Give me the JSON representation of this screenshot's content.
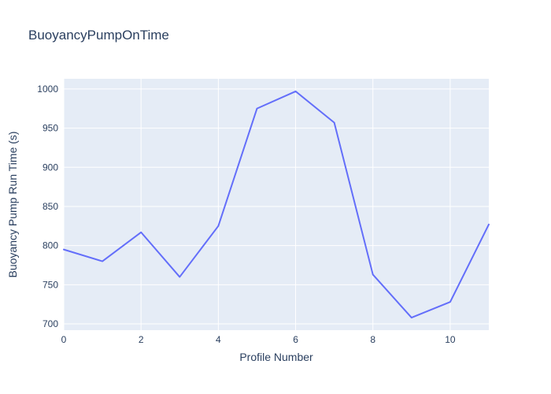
{
  "title": "BuoyancyPumpOnTime",
  "colors": {
    "line": "#636efa",
    "plot_bg": "#e5ecf6",
    "grid": "#ffffff",
    "text": "#2a3f5f",
    "paper": "#ffffff"
  },
  "chart_data": {
    "type": "line",
    "title": "BuoyancyPumpOnTime",
    "xlabel": "Profile Number",
    "ylabel": "Buoyancy Pump Run Time (s)",
    "x": [
      0,
      1,
      2,
      3,
      4,
      5,
      6,
      7,
      8,
      9,
      10,
      11
    ],
    "y": [
      795,
      780,
      817,
      760,
      825,
      975,
      997,
      957,
      763,
      708,
      728,
      827
    ],
    "series_name": "BuoyancyPumpOnTime",
    "x_range": [
      0,
      11
    ],
    "y_range": [
      692,
      1013
    ],
    "x_ticks": [
      0,
      2,
      4,
      6,
      8,
      10
    ],
    "y_ticks": [
      700,
      750,
      800,
      850,
      900,
      950,
      1000
    ],
    "grid": true,
    "legend_position": "none"
  }
}
